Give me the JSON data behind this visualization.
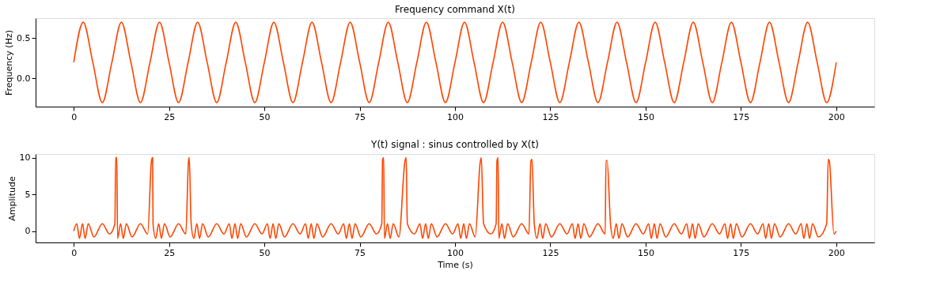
{
  "chart_data": [
    {
      "type": "line",
      "title": "Frequency command X(t)",
      "ylabel": "Frequency (Hz)",
      "x": [
        0,
        2.5,
        5,
        7.5,
        10,
        12.5,
        15,
        17.5,
        20,
        22.5,
        25,
        27.5,
        30,
        32.5,
        35,
        37.5,
        40,
        42.5,
        45,
        47.5,
        50,
        52.5,
        55,
        57.5,
        60,
        62.5,
        65,
        67.5,
        70,
        72.5,
        75,
        77.5,
        80,
        82.5,
        85,
        87.5,
        90,
        92.5,
        95,
        97.5,
        100,
        102.5,
        105,
        107.5,
        110,
        112.5,
        115,
        117.5,
        120,
        122.5,
        125,
        127.5,
        130,
        132.5,
        135,
        137.5,
        140,
        142.5,
        145,
        147.5,
        150,
        152.5,
        155,
        157.5,
        160,
        162.5,
        165,
        167.5,
        170,
        172.5,
        175,
        177.5,
        180,
        182.5,
        185,
        187.5,
        190,
        192.5,
        195,
        197.5,
        200
      ],
      "series": [
        {
          "color": "#ff4500",
          "values": [
            0.2,
            0.7,
            0.2,
            -0.3,
            0.2,
            0.7,
            0.2,
            -0.3,
            0.2,
            0.7,
            0.2,
            -0.3,
            0.2,
            0.7,
            0.2,
            -0.3,
            0.2,
            0.7,
            0.2,
            -0.3,
            0.2,
            0.7,
            0.2,
            -0.3,
            0.2,
            0.7,
            0.2,
            -0.3,
            0.2,
            0.7,
            0.2,
            -0.3,
            0.2,
            0.7,
            0.2,
            -0.3,
            0.2,
            0.7,
            0.2,
            -0.3,
            0.2,
            0.7,
            0.2,
            -0.3,
            0.2,
            0.7,
            0.2,
            -0.3,
            0.2,
            0.7,
            0.2,
            -0.3,
            0.2,
            0.7,
            0.2,
            -0.3,
            0.2,
            0.7,
            0.2,
            -0.3,
            0.2,
            0.7,
            0.2,
            -0.3,
            0.2,
            0.7,
            0.2,
            -0.3,
            0.2,
            0.7,
            0.2,
            -0.3,
            0.2,
            0.7,
            0.2,
            -0.3,
            0.2,
            0.7,
            0.2,
            -0.3,
            0.2
          ]
        }
      ],
      "xlim": [
        -10,
        210
      ],
      "xticks": [
        0,
        25,
        50,
        75,
        100,
        125,
        150,
        175,
        200
      ],
      "ylim": [
        -0.35,
        0.75
      ],
      "yticks": [
        {
          "value": 0,
          "label": "0.0"
        },
        0.5
      ],
      "grid": false,
      "line_style": "solid",
      "marker": "none"
    },
    {
      "type": "line",
      "title": "Y(t) signal : sinus controlled by X(t)",
      "xlabel": "Time (s)",
      "ylabel": "Amplitude",
      "x": [
        0,
        0.8,
        1.5,
        2.3,
        3,
        3.8,
        5.3,
        7.5,
        9.4,
        10.8,
        11,
        11.3,
        11.5,
        12.3,
        13,
        13.8,
        15.3,
        17.5,
        19.4,
        20.4,
        20.7,
        20.8,
        21.5,
        22.3,
        23,
        23.8,
        25.3,
        27.5,
        29.4,
        30.1,
        30.3,
        30.8,
        31.5,
        32.3,
        33,
        33.8,
        35.3,
        37.5,
        39.4,
        40.8,
        41.5,
        42.3,
        43,
        43.8,
        45.3,
        47.5,
        49.4,
        50.8,
        51.5,
        52.3,
        53,
        53.8,
        55.3,
        57.5,
        59.4,
        60.8,
        61.5,
        62.3,
        63,
        63.8,
        65.3,
        67.5,
        69.4,
        70.8,
        71.5,
        72.3,
        73,
        73.8,
        75.3,
        77.5,
        79.4,
        80.8,
        81,
        81.3,
        81.5,
        82.3,
        83,
        83.8,
        85.3,
        86.9,
        87.2,
        87.5,
        89.4,
        90.8,
        91.5,
        92.3,
        93,
        93.8,
        95.3,
        97.5,
        99.4,
        100.8,
        101.5,
        102.3,
        103,
        103.8,
        105.3,
        106.6,
        106.9,
        107.5,
        109.4,
        110.8,
        111,
        111.3,
        111.5,
        112.3,
        113,
        113.8,
        115.3,
        117.5,
        119.4,
        119.9,
        120.2,
        120.8,
        121.5,
        122.3,
        123,
        123.8,
        125.3,
        127.5,
        129.4,
        130.8,
        131.5,
        132.3,
        133,
        133.8,
        135.3,
        137.5,
        139.4,
        139.6,
        139.9,
        140.8,
        141.5,
        142.3,
        143,
        143.8,
        145.3,
        147.5,
        149.4,
        150.8,
        151.5,
        152.3,
        153,
        153.8,
        155.3,
        157.5,
        159.4,
        160.8,
        161.5,
        162.3,
        163,
        163.8,
        165.3,
        167.5,
        169.4,
        170.8,
        171.5,
        172.3,
        173,
        173.8,
        175.3,
        177.5,
        179.4,
        180.8,
        181.5,
        182.3,
        183,
        183.8,
        185.3,
        187.5,
        189.4,
        190.8,
        191.5,
        192.3,
        193,
        193.8,
        195.3,
        197.5,
        197.9,
        198.2,
        199.4,
        200
      ],
      "series": [
        {
          "color": "#ff4500",
          "values": [
            0,
            1,
            -1,
            1,
            -1,
            1,
            -0.8,
            1,
            -0.4,
            1,
            10,
            10,
            -1,
            1,
            -1,
            1,
            -0.8,
            1,
            -0.4,
            9.6,
            10,
            1,
            -1,
            1,
            -1,
            1,
            -0.8,
            1,
            -0.4,
            9.5,
            10,
            1,
            -1,
            1,
            -1,
            1,
            -0.8,
            1,
            -0.4,
            1,
            -1,
            1,
            -1,
            1,
            -0.8,
            1,
            -0.4,
            1,
            -1,
            1,
            -1,
            1,
            -0.8,
            1,
            -0.4,
            1,
            -1,
            1,
            -1,
            1,
            -0.8,
            1,
            -0.4,
            1,
            -1,
            1,
            -1,
            1,
            -0.8,
            1,
            -0.4,
            1,
            9.7,
            10,
            -1,
            1,
            -1,
            1,
            -0.8,
            9.6,
            10,
            1,
            -0.4,
            1,
            -1,
            1,
            -1,
            1,
            -0.8,
            1,
            -0.4,
            1,
            -1,
            1,
            -1,
            1,
            -0.8,
            9.3,
            10,
            1,
            -0.4,
            1,
            9.5,
            10,
            -1,
            1,
            -1,
            1,
            -0.8,
            1,
            -0.4,
            9.5,
            9.8,
            1,
            -1,
            1,
            -1,
            1,
            -0.8,
            1,
            -0.4,
            1,
            -1,
            1,
            -1,
            1,
            -0.8,
            1,
            -0.4,
            9.6,
            9.6,
            1,
            -1,
            1,
            -1,
            1,
            -0.8,
            1,
            -0.4,
            1,
            -1,
            1,
            -1,
            1,
            -0.8,
            1,
            -0.4,
            1,
            -1,
            1,
            -1,
            1,
            -0.8,
            1,
            -0.4,
            1,
            -1,
            1,
            -1,
            1,
            -0.8,
            1,
            -0.4,
            1,
            -1,
            1,
            -1,
            1,
            -0.8,
            1,
            -0.4,
            1,
            -1,
            1,
            -1,
            1,
            -0.8,
            1,
            9.8,
            9.5,
            -0.4,
            0
          ]
        }
      ],
      "xlim": [
        -10,
        210
      ],
      "xticks": [
        0,
        25,
        50,
        75,
        100,
        125,
        150,
        175,
        200
      ],
      "ylim": [
        -1.55,
        10.5
      ],
      "yticks": [
        0,
        5,
        10
      ],
      "grid": false,
      "line_style": "solid",
      "marker": "none"
    }
  ]
}
